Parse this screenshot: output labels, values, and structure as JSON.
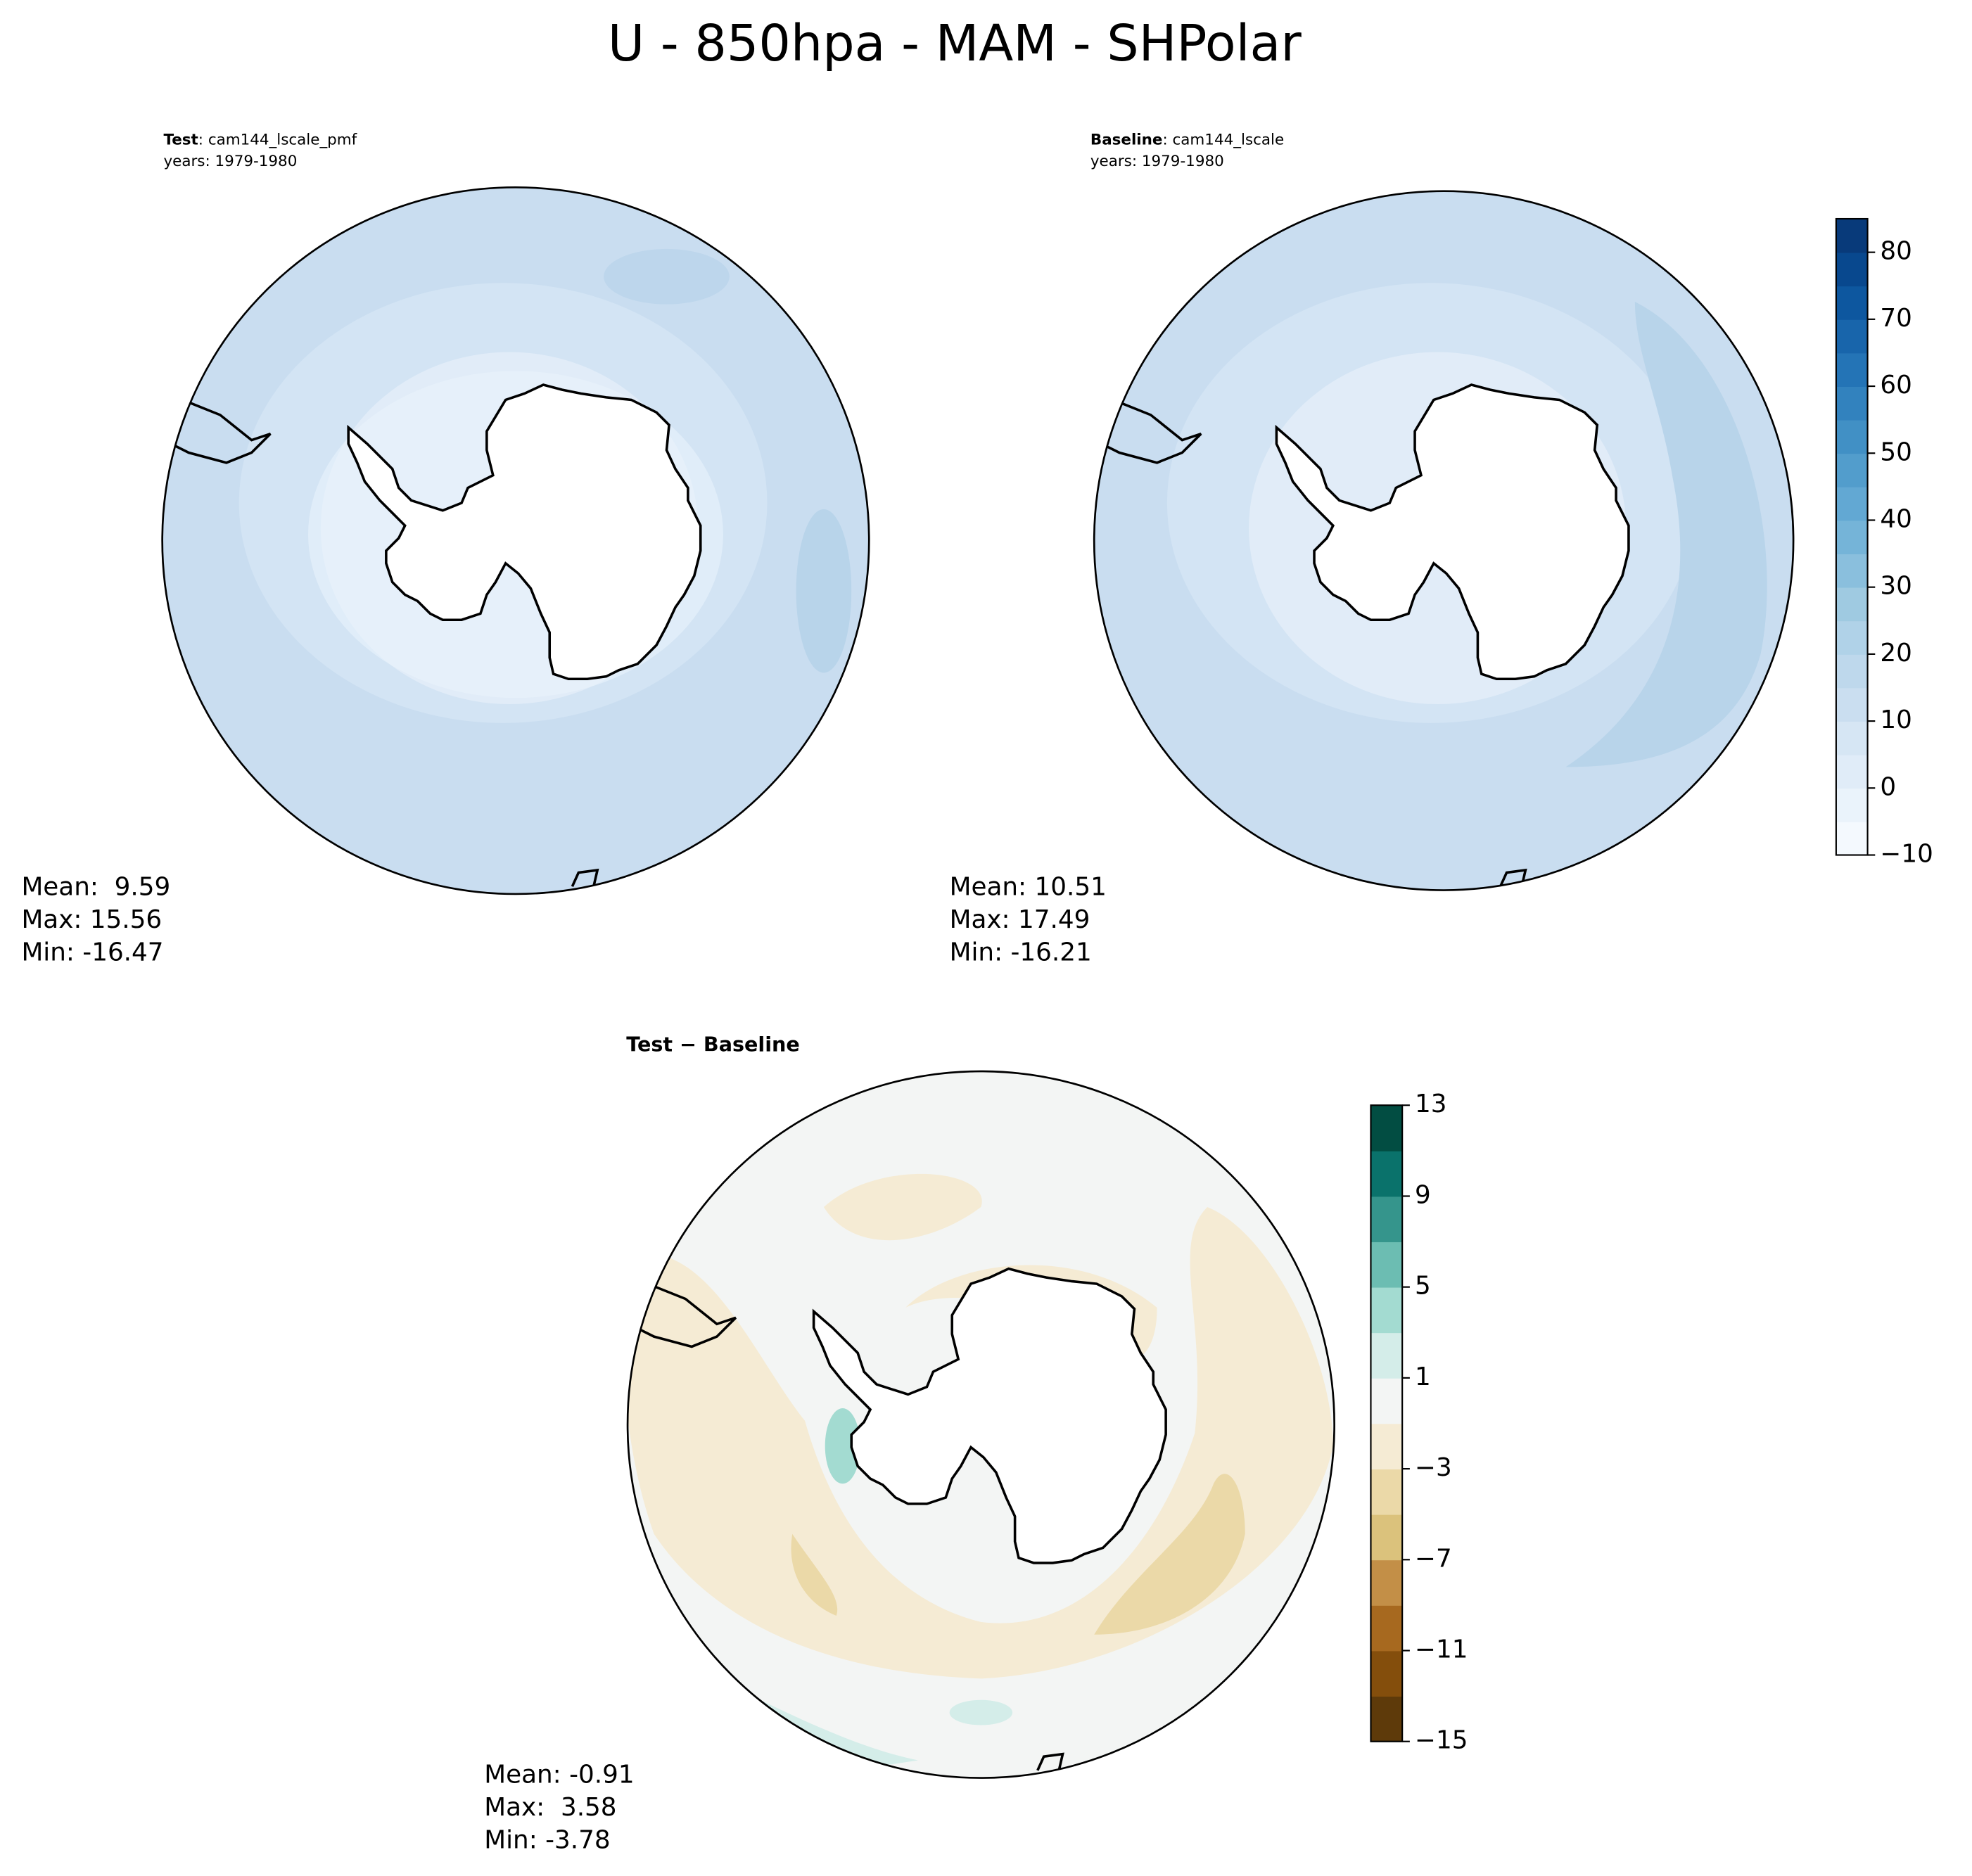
{
  "title": "U - 850hpa - MAM - SHPolar",
  "panels": [
    {
      "label": "Test",
      "case": ": cam144_lscale_pmf",
      "years": "years: 1979-1980",
      "stats": [
        "Mean:  9.59",
        "Max: 15.56",
        "Min: -16.47"
      ]
    },
    {
      "label": "Baseline",
      "case": ": cam144_lscale",
      "years": "years: 1979-1980",
      "stats": [
        "Mean: 10.51",
        "Max: 17.49",
        "Min: -16.21"
      ]
    },
    {
      "label": "Test − Baseline",
      "stats": [
        "Mean: -0.91",
        "Max:  3.58",
        "Min: -3.78"
      ]
    }
  ],
  "colorbars": [
    {
      "lim": [
        -10,
        85
      ],
      "ticks": [
        {
          "value": -10,
          "label": "−10"
        },
        0,
        10,
        20,
        30,
        40,
        50,
        60,
        70,
        80
      ],
      "colors": [
        "#f4f9fe",
        "#eaf3fb",
        "#e0ecf8",
        "#d6e6f4",
        "#cadef0",
        "#bed8ec",
        "#b0d2e8",
        "#9fcae1",
        "#8abfdd",
        "#75b4d8",
        "#62a8d3",
        "#529dcc",
        "#4190c5",
        "#3282be",
        "#2474b6",
        "#1865ab",
        "#0d579f",
        "#08488e",
        "#083a7a"
      ]
    },
    {
      "lim": [
        -15,
        13
      ],
      "ticks": [
        {
          "value": -15,
          "label": "−15"
        },
        {
          "value": -11,
          "label": "−11"
        },
        {
          "value": -7,
          "label": "−7"
        },
        {
          "value": -3,
          "label": "−3"
        },
        1,
        5,
        9,
        13
      ],
      "colors": [
        "#5e3a0a",
        "#844e0c",
        "#a7691f",
        "#c38f47",
        "#dbc27c",
        "#ebd9a8",
        "#f5ebd4",
        "#f3f5f4",
        "#d4ede9",
        "#a3dbd1",
        "#6cbdb2",
        "#35958c",
        "#0a726b",
        "#024d42"
      ]
    }
  ]
}
